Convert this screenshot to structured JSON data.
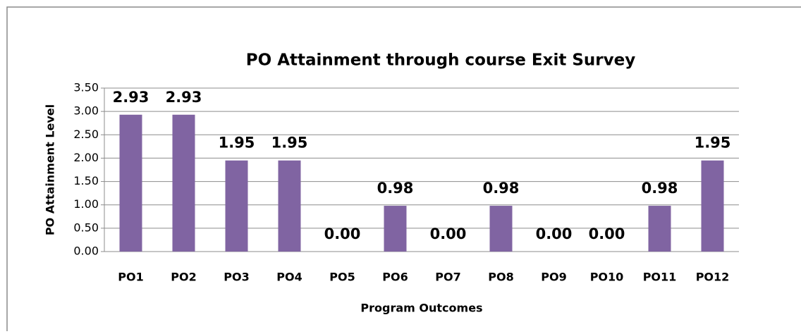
{
  "chart_data": {
    "type": "bar",
    "title": "PO Attainment through course Exit Survey",
    "x_label": "Program Outcomes",
    "y_label": "PO Attainment Level",
    "categories": [
      "PO1",
      "PO2",
      "PO3",
      "PO4",
      "PO5",
      "PO6",
      "PO7",
      "PO8",
      "PO9",
      "PO10",
      "PO11",
      "PO12"
    ],
    "values": [
      2.93,
      2.93,
      1.95,
      1.95,
      0,
      0.98,
      0,
      0.98,
      0,
      0,
      0.98,
      1.95
    ],
    "value_labels": [
      "2.93",
      "2.93",
      "1.95",
      "1.95",
      "0.00",
      "0.98",
      "0.00",
      "0.98",
      "0.00",
      "0.00",
      "0.98",
      "1.95"
    ],
    "color": "#8064a2",
    "ylim": [
      0,
      3.5
    ],
    "yticks": [
      {
        "value": 0,
        "label": "0.00"
      },
      {
        "value": 0.5,
        "label": "0.50"
      },
      {
        "value": 1,
        "label": "1.00"
      },
      {
        "value": 1.5,
        "label": "1.50"
      },
      {
        "value": 2,
        "label": "2.00"
      },
      {
        "value": 2.5,
        "label": "2.50"
      },
      {
        "value": 3,
        "label": "3.00"
      },
      {
        "value": 3.5,
        "label": "3.50"
      }
    ],
    "grid": true
  }
}
